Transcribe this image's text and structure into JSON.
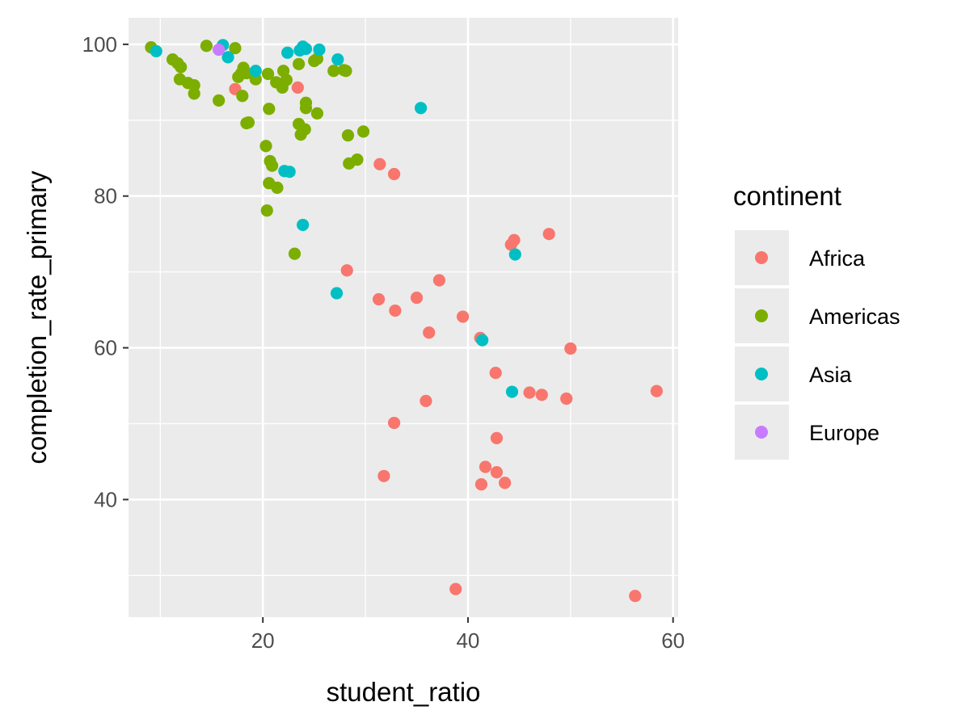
{
  "chart_data": {
    "type": "scatter",
    "xlabel": "student_ratio",
    "ylabel": "completion_rate_primary",
    "xlim": [
      6.9,
      60.5
    ],
    "ylim": [
      24.5,
      103.5
    ],
    "xticks": [
      20,
      40,
      60
    ],
    "yticks": [
      40,
      60,
      80,
      100
    ],
    "grid": true,
    "legend": {
      "title": "continent",
      "placement": "right",
      "entries": [
        {
          "name": "Africa",
          "color": "#F8766D"
        },
        {
          "name": "Americas",
          "color": "#7CAE00"
        },
        {
          "name": "Asia",
          "color": "#00BFC4"
        },
        {
          "name": "Europe",
          "color": "#C77CFF"
        }
      ]
    },
    "series": [
      {
        "name": "Africa",
        "color": "#F8766D",
        "points": [
          [
            17.3,
            94.1
          ],
          [
            23.4,
            94.3
          ],
          [
            31.4,
            84.2
          ],
          [
            32.8,
            82.9
          ],
          [
            28.2,
            70.2
          ],
          [
            31.3,
            66.4
          ],
          [
            32.9,
            64.9
          ],
          [
            35.0,
            66.6
          ],
          [
            37.2,
            68.9
          ],
          [
            36.2,
            62.0
          ],
          [
            39.5,
            64.1
          ],
          [
            41.2,
            61.3
          ],
          [
            44.2,
            73.6
          ],
          [
            44.5,
            74.2
          ],
          [
            47.9,
            75.0
          ],
          [
            50.0,
            59.9
          ],
          [
            42.7,
            56.7
          ],
          [
            46.0,
            54.1
          ],
          [
            47.2,
            53.8
          ],
          [
            49.6,
            53.3
          ],
          [
            58.4,
            54.3
          ],
          [
            35.9,
            53.0
          ],
          [
            32.8,
            50.1
          ],
          [
            42.8,
            48.1
          ],
          [
            41.7,
            44.3
          ],
          [
            42.8,
            43.6
          ],
          [
            41.3,
            42.0
          ],
          [
            43.6,
            42.2
          ],
          [
            31.8,
            43.1
          ],
          [
            38.8,
            28.2
          ],
          [
            56.3,
            27.3
          ]
        ]
      },
      {
        "name": "Americas",
        "color": "#7CAE00",
        "points": [
          [
            9.1,
            99.6
          ],
          [
            14.5,
            99.8
          ],
          [
            17.3,
            99.5
          ],
          [
            11.2,
            98.0
          ],
          [
            11.7,
            97.5
          ],
          [
            12.0,
            97.0
          ],
          [
            11.9,
            95.4
          ],
          [
            12.7,
            94.9
          ],
          [
            13.3,
            94.6
          ],
          [
            13.3,
            93.5
          ],
          [
            15.7,
            92.6
          ],
          [
            17.6,
            95.7
          ],
          [
            17.9,
            96.2
          ],
          [
            18.1,
            96.9
          ],
          [
            18.4,
            96.2
          ],
          [
            19.3,
            95.4
          ],
          [
            18.0,
            93.2
          ],
          [
            18.4,
            89.6
          ],
          [
            18.6,
            89.7
          ],
          [
            20.5,
            96.1
          ],
          [
            21.3,
            95.0
          ],
          [
            21.9,
            94.3
          ],
          [
            22.0,
            96.5
          ],
          [
            22.3,
            95.3
          ],
          [
            23.5,
            97.4
          ],
          [
            25.0,
            97.8
          ],
          [
            25.3,
            98.1
          ],
          [
            26.9,
            96.5
          ],
          [
            27.9,
            96.6
          ],
          [
            28.1,
            96.5
          ],
          [
            20.6,
            91.5
          ],
          [
            24.2,
            92.3
          ],
          [
            24.2,
            91.6
          ],
          [
            25.3,
            90.9
          ],
          [
            23.5,
            89.5
          ],
          [
            24.1,
            88.8
          ],
          [
            23.7,
            88.1
          ],
          [
            28.3,
            88.0
          ],
          [
            29.8,
            88.5
          ],
          [
            28.4,
            84.3
          ],
          [
            29.2,
            84.8
          ],
          [
            20.3,
            86.6
          ],
          [
            20.7,
            84.6
          ],
          [
            20.9,
            84.0
          ],
          [
            20.6,
            81.7
          ],
          [
            21.4,
            81.1
          ],
          [
            20.4,
            78.1
          ],
          [
            23.1,
            72.4
          ]
        ]
      },
      {
        "name": "Asia",
        "color": "#00BFC4",
        "points": [
          [
            9.6,
            99.1
          ],
          [
            16.1,
            99.9
          ],
          [
            16.6,
            98.3
          ],
          [
            19.3,
            96.5
          ],
          [
            22.4,
            98.9
          ],
          [
            23.6,
            99.2
          ],
          [
            23.9,
            99.7
          ],
          [
            24.2,
            99.4
          ],
          [
            25.5,
            99.3
          ],
          [
            27.3,
            98.0
          ],
          [
            35.4,
            91.6
          ],
          [
            22.1,
            83.3
          ],
          [
            22.6,
            83.2
          ],
          [
            23.9,
            76.2
          ],
          [
            27.2,
            67.2
          ],
          [
            44.6,
            72.3
          ],
          [
            41.4,
            61.0
          ],
          [
            44.3,
            54.2
          ]
        ]
      },
      {
        "name": "Europe",
        "color": "#C77CFF",
        "points": [
          [
            15.7,
            99.3
          ]
        ]
      }
    ]
  }
}
